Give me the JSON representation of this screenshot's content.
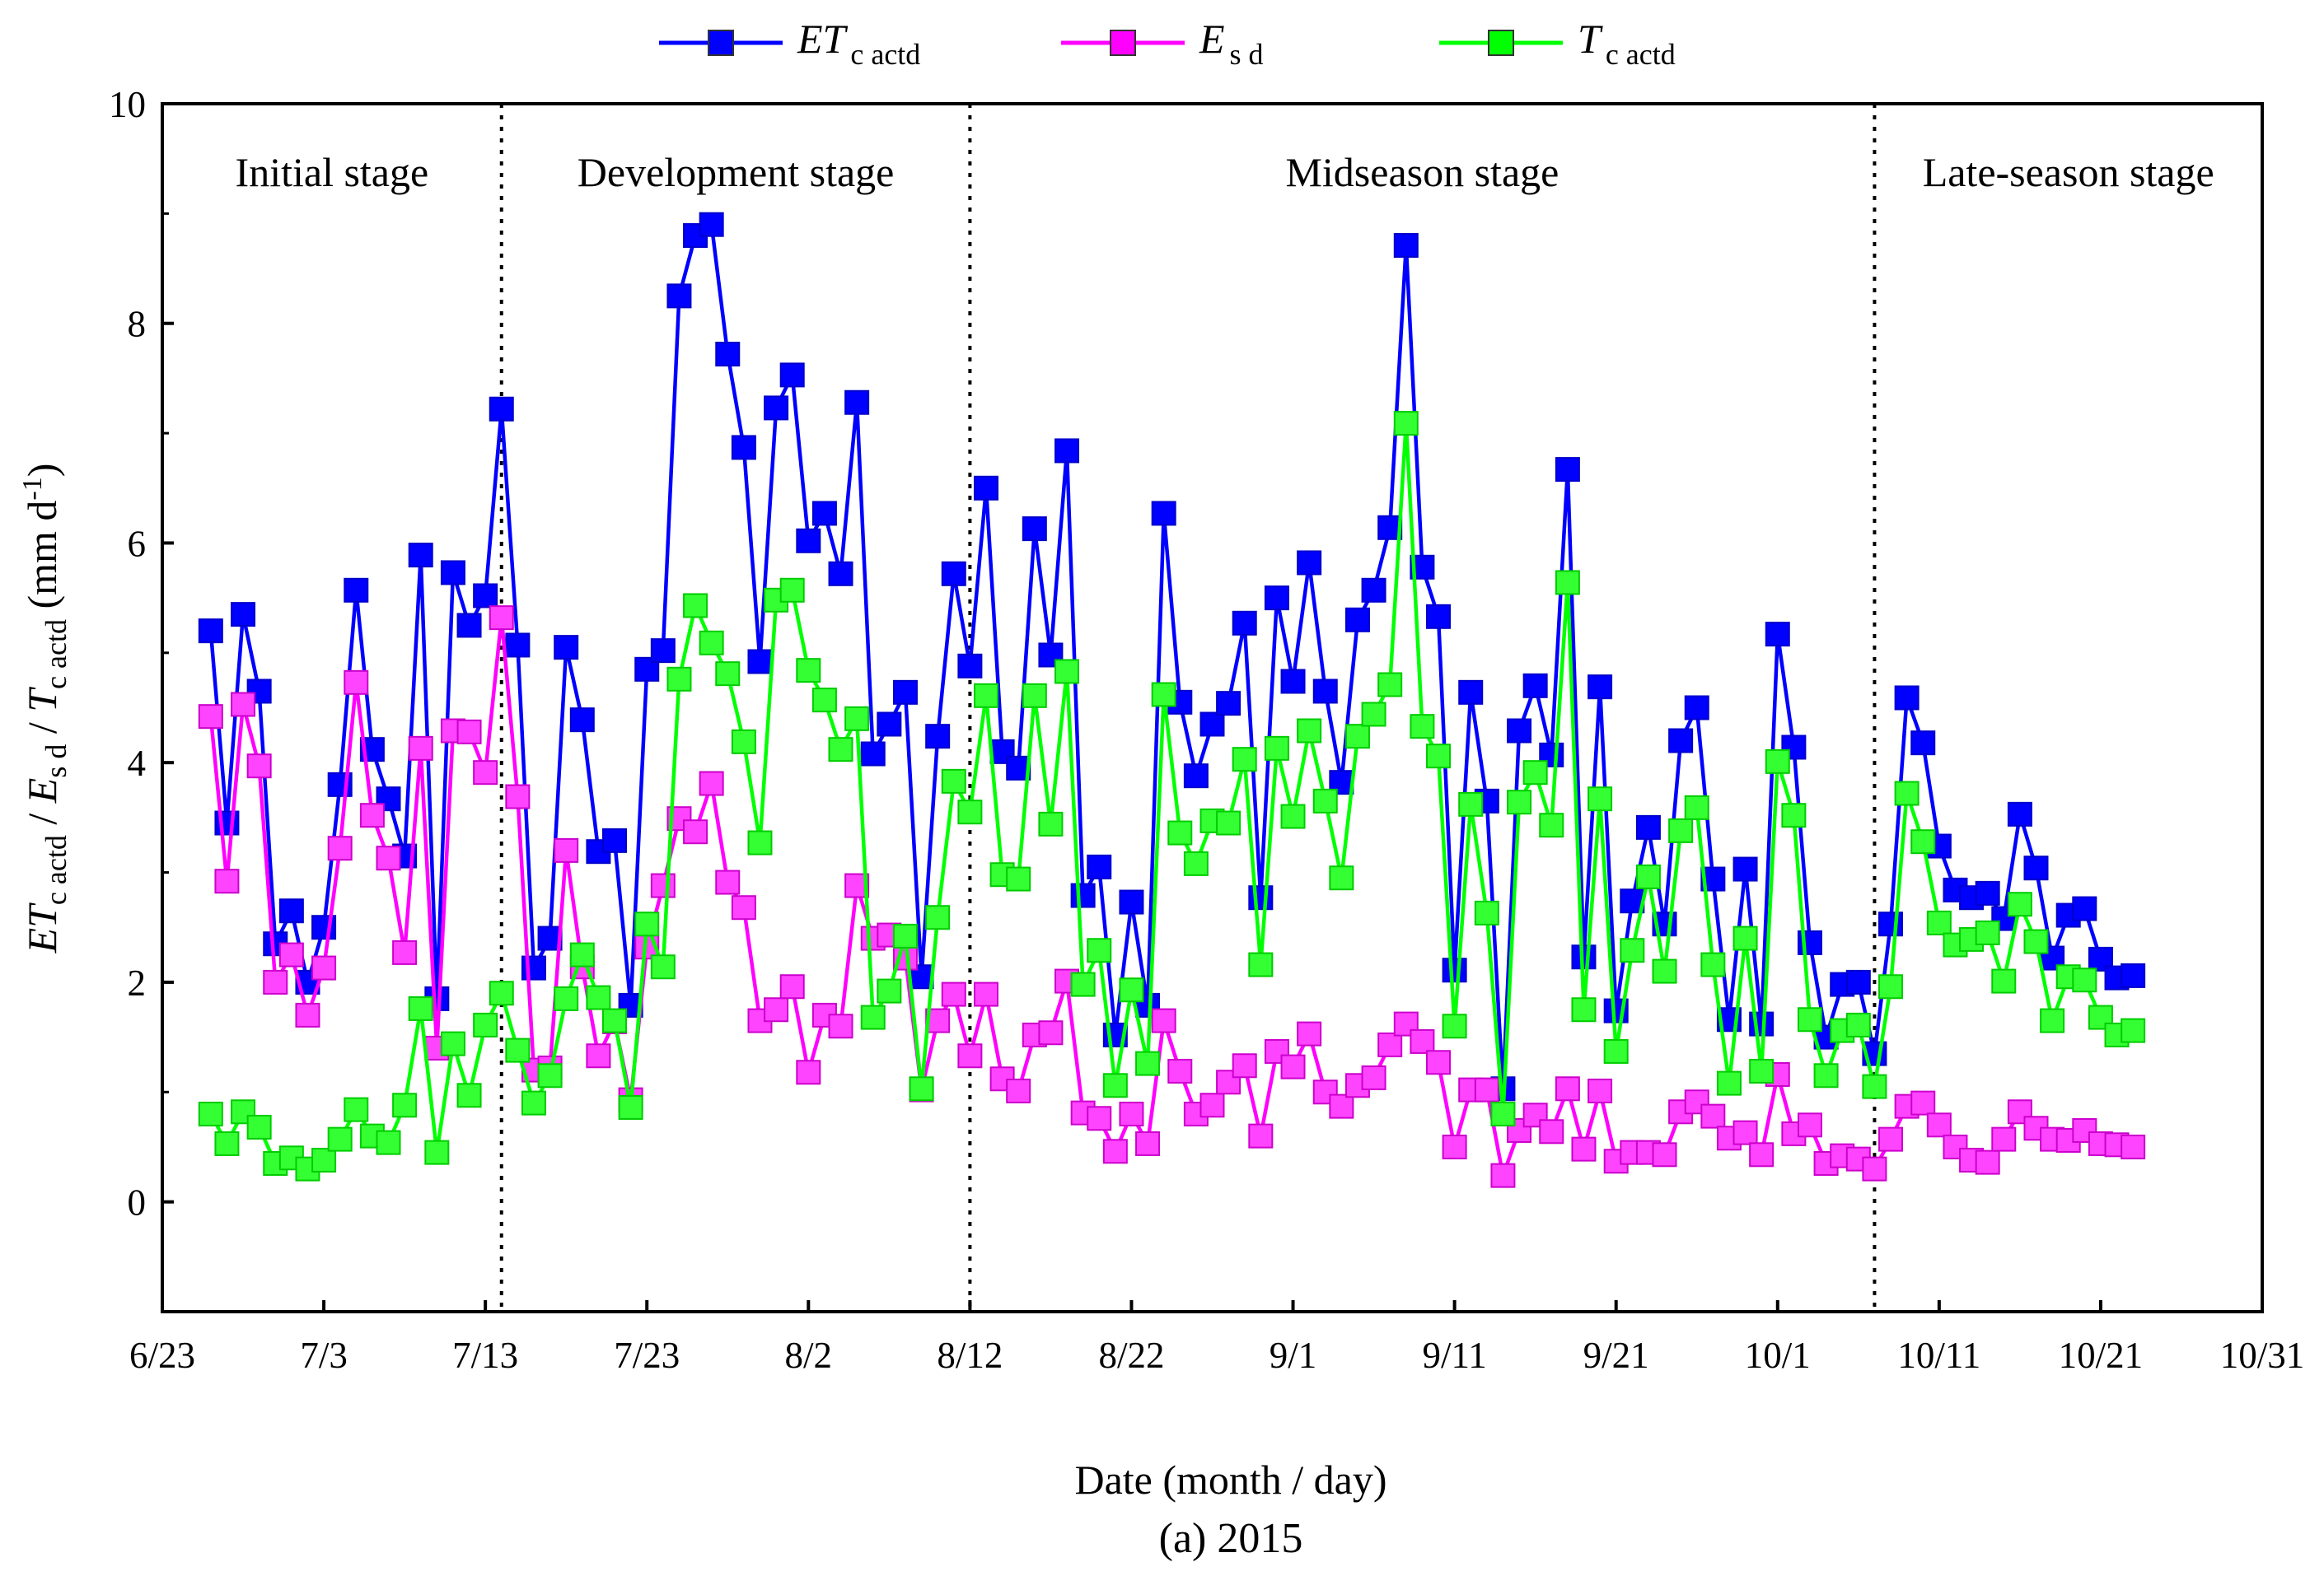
{
  "chart_data": {
    "type": "line",
    "caption": "(a) 2015",
    "xlabel": "Date (month / day)",
    "ylabel": {
      "parts": [
        {
          "text": "ET",
          "italic": true
        },
        {
          "text": "c actd",
          "sub": true
        },
        {
          "text": " / "
        },
        {
          "text": "E",
          "italic": true
        },
        {
          "text": "s d",
          "sub": true
        },
        {
          "text": " / "
        },
        {
          "text": "T",
          "italic": true
        },
        {
          "text": "c actd",
          "sub": true
        },
        {
          "text": " (mm d"
        },
        {
          "text": "-1",
          "sup": true
        },
        {
          "text": ")"
        }
      ]
    },
    "x_tick_labels": [
      "6/23",
      "7/3",
      "7/13",
      "7/23",
      "8/2",
      "8/12",
      "8/22",
      "9/1",
      "9/11",
      "9/21",
      "10/1",
      "10/11",
      "10/21",
      "10/31"
    ],
    "y_tick_labels": [
      "0",
      "2",
      "4",
      "6",
      "8",
      "10"
    ],
    "x_axis": {
      "start_date": "2015-06-23",
      "end_date": "2015-10-31",
      "tick_step_days": 10
    },
    "ylim": [
      -1,
      10
    ],
    "y_ticks": [
      0,
      2,
      4,
      6,
      8,
      10
    ],
    "grid": false,
    "legend": {
      "placement": "top-center",
      "entries": [
        {
          "main": "ET",
          "sub": "c actd",
          "color": "#0000ff"
        },
        {
          "main": "E",
          "sub": "s d",
          "color": "#ff00ff"
        },
        {
          "main": "T",
          "sub": "c actd",
          "color": "#00ff00"
        }
      ]
    },
    "stages": [
      {
        "label": "Initial stage",
        "start": "2015-06-23",
        "end": "2015-07-14"
      },
      {
        "label": "Development stage",
        "start": "2015-07-14",
        "end": "2015-08-12"
      },
      {
        "label": "Midseason stage",
        "start": "2015-08-12",
        "end": "2015-10-07"
      },
      {
        "label": "Late-season stage",
        "start": "2015-10-07",
        "end": "2015-10-31"
      }
    ],
    "series": [
      {
        "key": "etc",
        "color": "#0000ff",
        "marker_fill": "#0000ff",
        "marker_edge": "#0000cc",
        "start_date": "2015-06-26",
        "values": [
          5.2,
          3.45,
          5.35,
          4.65,
          2.35,
          2.65,
          2.0,
          2.5,
          3.8,
          5.57,
          4.12,
          3.67,
          3.15,
          5.89,
          1.85,
          5.73,
          5.25,
          5.52,
          7.22,
          5.07,
          2.13,
          2.4,
          5.05,
          4.39,
          3.19,
          3.29,
          1.79,
          4.85,
          5.02,
          8.25,
          8.8,
          8.9,
          7.72,
          6.87,
          4.92,
          7.23,
          7.53,
          6.02,
          6.27,
          5.72,
          7.28,
          4.08,
          4.35,
          4.64,
          2.05,
          4.24,
          5.72,
          4.88,
          6.5,
          4.1,
          3.95,
          6.13,
          4.98,
          6.84,
          2.79,
          3.05,
          1.52,
          2.73,
          1.79,
          6.27,
          4.55,
          3.88,
          4.35,
          4.54,
          5.27,
          2.77,
          5.5,
          4.74,
          5.82,
          4.65,
          3.82,
          5.3,
          5.57,
          6.14,
          8.71,
          5.78,
          5.33,
          2.11,
          4.64,
          3.65,
          1.03,
          4.29,
          4.7,
          4.07,
          6.67,
          2.23,
          4.69,
          1.74,
          2.74,
          3.41,
          2.53,
          4.2,
          4.5,
          2.94,
          1.66,
          3.03,
          1.62,
          5.17,
          4.14,
          2.36,
          1.5,
          1.98,
          2.0,
          1.35,
          2.53,
          4.59,
          4.18,
          3.24,
          2.84,
          2.77,
          2.81,
          2.58,
          3.53,
          3.04,
          2.22,
          2.61,
          2.67,
          2.21,
          2.04,
          2.06
        ]
      },
      {
        "key": "esd",
        "color": "#ff00ff",
        "marker_fill": "#ff44ff",
        "marker_edge": "#cc00cc",
        "start_date": "2015-06-26",
        "values": [
          4.42,
          2.92,
          4.53,
          3.97,
          2.0,
          2.25,
          1.7,
          2.13,
          3.22,
          4.73,
          3.52,
          3.13,
          2.27,
          4.13,
          1.4,
          4.29,
          4.28,
          3.91,
          5.32,
          3.69,
          1.2,
          1.22,
          3.2,
          2.14,
          1.33,
          1.64,
          0.93,
          2.32,
          2.88,
          3.49,
          3.37,
          3.81,
          2.91,
          2.68,
          1.65,
          1.75,
          1.96,
          1.18,
          1.7,
          1.6,
          2.88,
          2.4,
          2.43,
          2.22,
          1.02,
          1.65,
          1.89,
          1.33,
          1.89,
          1.12,
          1.01,
          1.52,
          1.54,
          2.01,
          0.81,
          0.76,
          0.46,
          0.8,
          0.53,
          1.65,
          1.19,
          0.8,
          0.88,
          1.09,
          1.24,
          0.6,
          1.37,
          1.23,
          1.53,
          1.0,
          0.87,
          1.06,
          1.13,
          1.43,
          1.62,
          1.46,
          1.27,
          0.5,
          1.02,
          1.02,
          0.24,
          0.65,
          0.79,
          0.64,
          1.03,
          0.48,
          1.01,
          0.37,
          0.45,
          0.45,
          0.43,
          0.82,
          0.91,
          0.78,
          0.58,
          0.63,
          0.43,
          1.16,
          0.62,
          0.7,
          0.35,
          0.42,
          0.39,
          0.3,
          0.57,
          0.87,
          0.9,
          0.7,
          0.5,
          0.38,
          0.36,
          0.57,
          0.82,
          0.67,
          0.57,
          0.56,
          0.65,
          0.53,
          0.52,
          0.5
        ]
      },
      {
        "key": "tc",
        "color": "#00ff00",
        "marker_fill": "#33ff33",
        "marker_edge": "#00cc00",
        "start_date": "2015-06-26",
        "values": [
          0.8,
          0.53,
          0.82,
          0.68,
          0.35,
          0.4,
          0.3,
          0.38,
          0.57,
          0.84,
          0.6,
          0.54,
          0.88,
          1.76,
          0.45,
          1.44,
          0.97,
          1.61,
          1.9,
          1.38,
          0.9,
          1.15,
          1.85,
          2.25,
          1.86,
          1.65,
          0.86,
          2.53,
          2.14,
          4.76,
          5.43,
          5.09,
          4.81,
          4.19,
          3.27,
          5.48,
          5.57,
          4.84,
          4.57,
          4.12,
          4.4,
          1.68,
          1.92,
          2.42,
          1.03,
          2.59,
          3.83,
          3.55,
          4.61,
          2.98,
          2.94,
          4.61,
          3.44,
          4.83,
          1.98,
          2.29,
          1.06,
          1.93,
          1.26,
          4.62,
          3.36,
          3.08,
          3.47,
          3.45,
          4.03,
          2.16,
          4.13,
          3.51,
          4.29,
          3.65,
          2.95,
          4.24,
          4.44,
          4.71,
          7.09,
          4.33,
          4.06,
          1.6,
          3.62,
          2.63,
          0.8,
          3.64,
          3.91,
          3.43,
          5.64,
          1.75,
          3.67,
          1.37,
          2.29,
          2.96,
          2.1,
          3.38,
          3.59,
          2.16,
          1.08,
          2.4,
          1.19,
          4.01,
          3.52,
          1.66,
          1.15,
          1.56,
          1.61,
          1.05,
          1.96,
          3.72,
          3.28,
          2.54,
          2.34,
          2.39,
          2.45,
          2.01,
          2.71,
          2.37,
          1.65,
          2.05,
          2.02,
          1.68,
          1.52,
          1.56
        ]
      }
    ]
  }
}
